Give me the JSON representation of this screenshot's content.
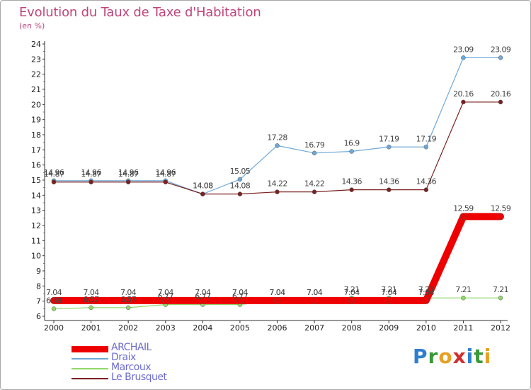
{
  "title": "Evolution du Taux de Taxe d'Habitation",
  "unit": "(en %)",
  "brand": [
    "P",
    "r",
    "o",
    "x",
    "i",
    "t",
    "i"
  ],
  "brand_colors": [
    "#2f7fd0",
    "#3a9a3a",
    "#e8a020",
    "#d03030",
    "#2f7fd0",
    "#3a9a3a",
    "#e8a020"
  ],
  "chart_data": {
    "type": "line",
    "categories": [
      "2000",
      "2001",
      "2002",
      "2003",
      "2004",
      "2005",
      "2006",
      "2007",
      "2008",
      "2009",
      "2010",
      "2011",
      "2012"
    ],
    "ylim": [
      6,
      24
    ],
    "yticks": [
      6,
      7,
      8,
      9,
      10,
      11,
      12,
      13,
      14,
      15,
      16,
      17,
      18,
      19,
      20,
      21,
      22,
      23,
      24
    ],
    "grid": false,
    "legend_position": "bottom-left",
    "series": [
      {
        "name": "ARCHAIL",
        "color": "#ee0000",
        "width": 10,
        "values": [
          7.04,
          7.04,
          7.04,
          7.04,
          7.04,
          7.04,
          7.04,
          7.04,
          7.04,
          7.04,
          7.04,
          12.59,
          12.59
        ],
        "labels": [
          "7.04",
          "7.04",
          "7.04",
          "7.04",
          "7.04",
          "7.04",
          "7.04",
          "7.04",
          "7.04",
          "7.04",
          "7.04",
          "12.59",
          "12.59"
        ]
      },
      {
        "name": "Draix",
        "color": "#6fa8d8",
        "width": 1.2,
        "values": [
          14.96,
          14.96,
          14.96,
          14.96,
          14.08,
          15.05,
          17.28,
          16.79,
          16.9,
          17.19,
          17.19,
          23.09,
          23.09
        ],
        "labels": [
          "14.96",
          "14.96",
          "14.96",
          "14.96",
          "14.08",
          "15.05",
          "17.28",
          "16.79",
          "16.9",
          "17.19",
          "17.19",
          "23.09",
          "23.09"
        ]
      },
      {
        "name": "Marcoux",
        "color": "#8fd86a",
        "width": 1.2,
        "values": [
          6.49,
          6.57,
          6.57,
          6.77,
          6.77,
          6.77,
          7.04,
          7.04,
          7.21,
          7.21,
          7.21,
          7.21,
          7.21
        ],
        "labels": [
          "6.49",
          "6.57",
          "6.57",
          "6.77",
          "6.77",
          "6.77",
          "7.04",
          "7.04",
          "7.21",
          "7.21",
          "7.21",
          "7.21",
          "7.21"
        ]
      },
      {
        "name": "Le Brusquet",
        "color": "#7a2020",
        "width": 1.2,
        "values": [
          14.87,
          14.87,
          14.87,
          14.87,
          14.08,
          14.08,
          14.22,
          14.22,
          14.36,
          14.36,
          14.36,
          20.16,
          20.16
        ],
        "labels": [
          "14.87",
          "14.87",
          "14.87",
          "14.87",
          "14.08",
          "14.08",
          "14.22",
          "14.22",
          "14.36",
          "14.36",
          "14.36",
          "20.16",
          "20.16"
        ]
      }
    ]
  }
}
